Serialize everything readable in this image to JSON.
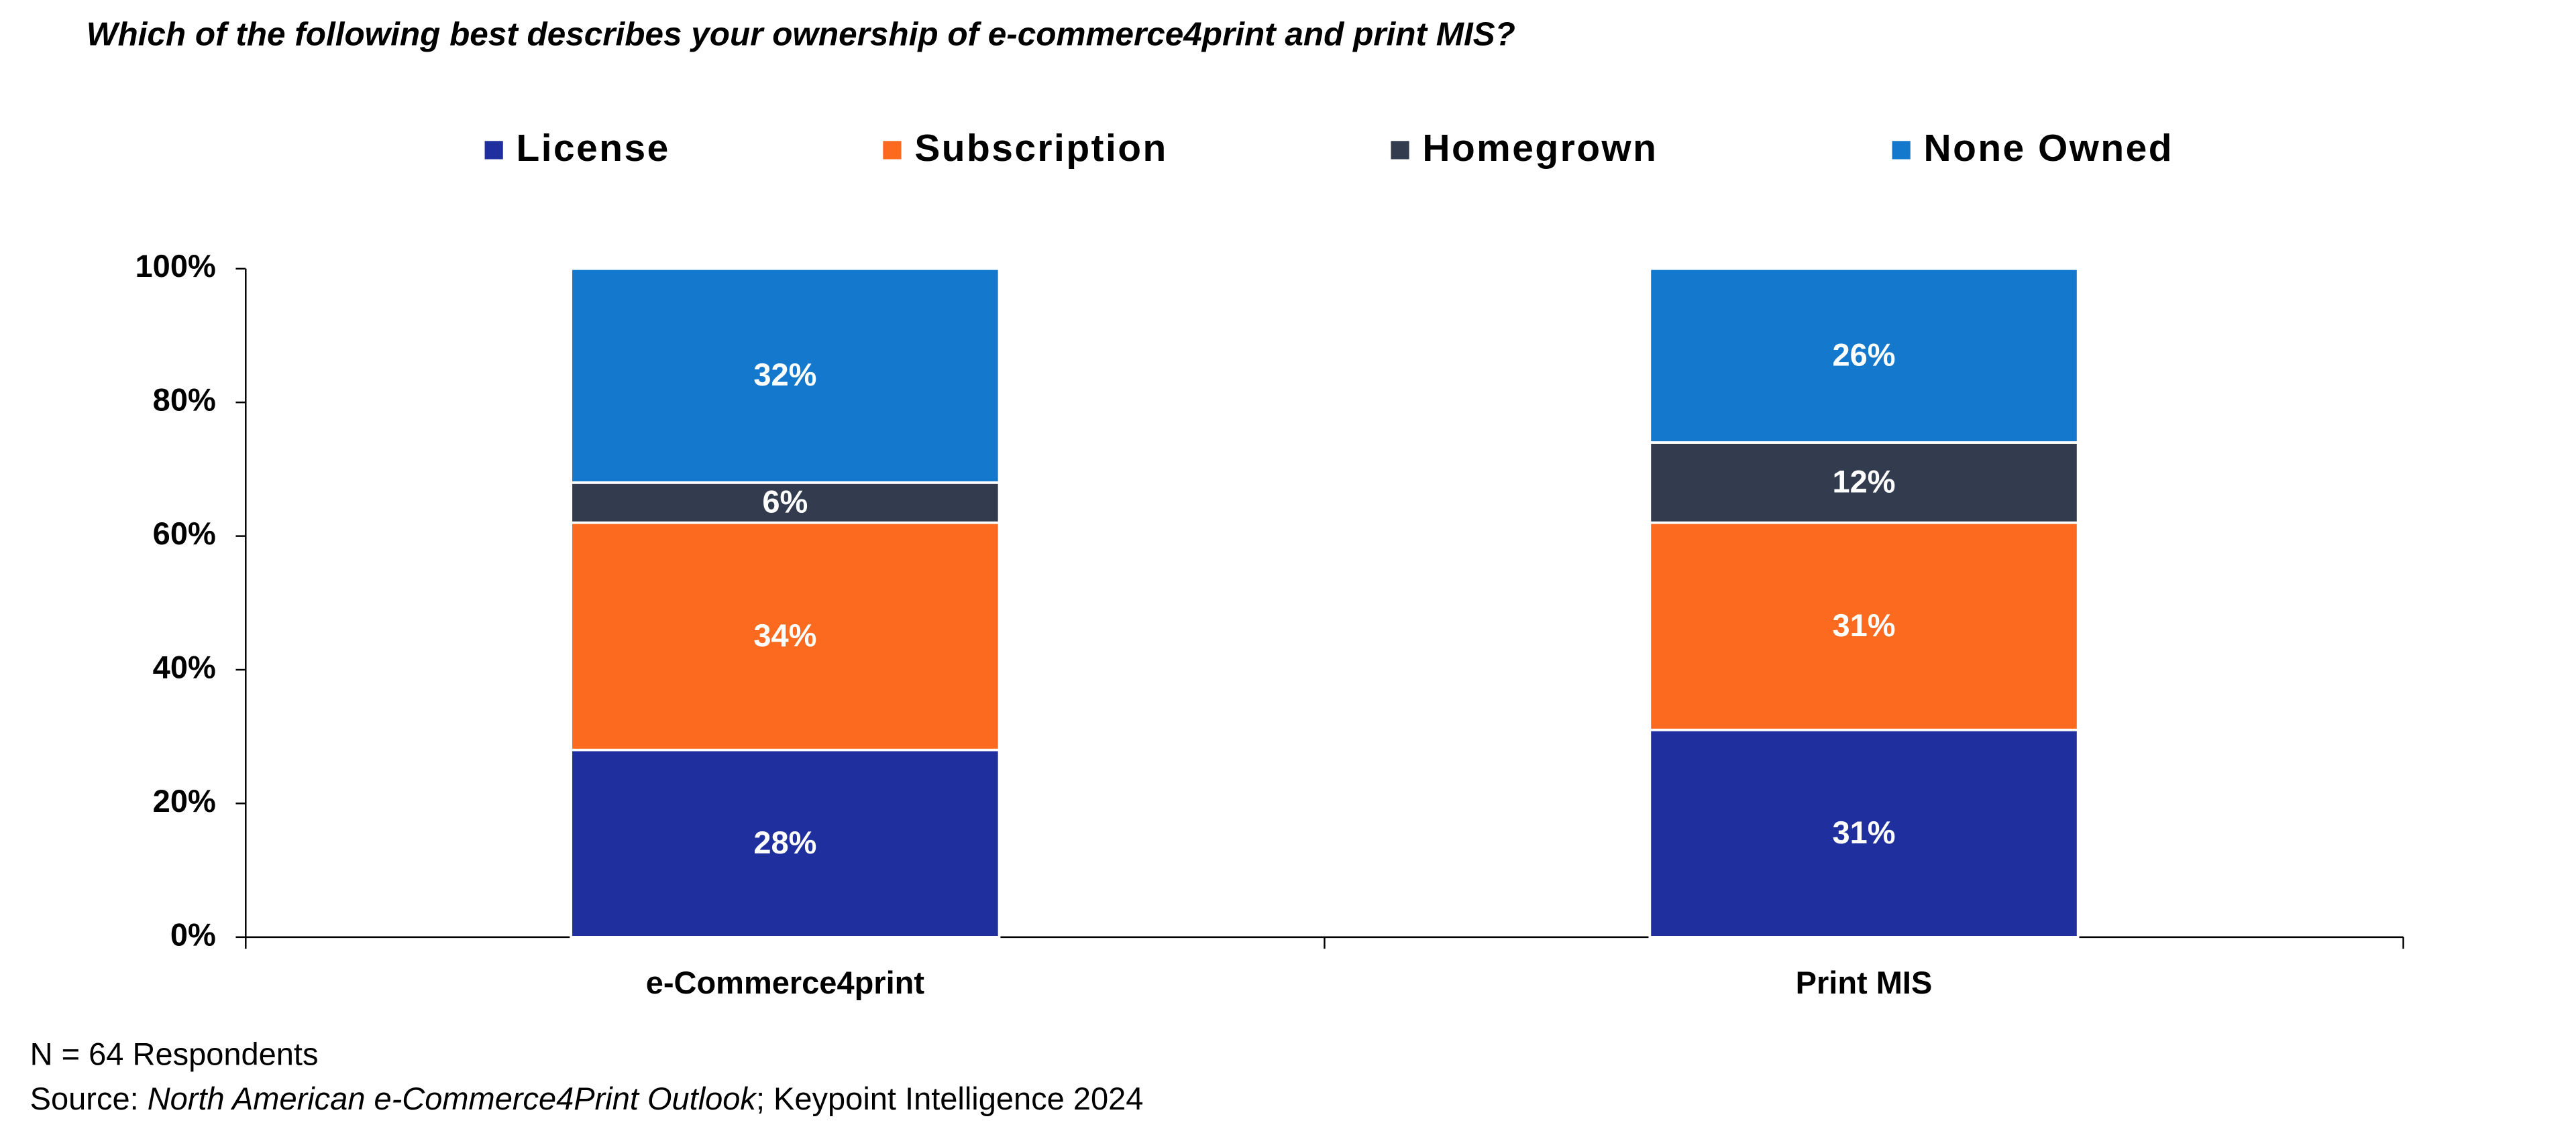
{
  "chart_data": {
    "type": "stacked_bar",
    "title": "Which of the following best describes your ownership of e-commerce4print and print MIS?",
    "categories": [
      "e-Commerce4print",
      "Print MIS"
    ],
    "series": [
      {
        "name": "License",
        "color": "#1f2f9e",
        "values": [
          28,
          31
        ],
        "value_labels": [
          "28%",
          "31%"
        ]
      },
      {
        "name": "Subscription",
        "color": "#fb6a1e",
        "values": [
          34,
          31
        ],
        "value_labels": [
          "34%",
          "31%"
        ]
      },
      {
        "name": "Homegrown",
        "color": "#323c4e",
        "values": [
          6,
          12
        ],
        "value_labels": [
          "6%",
          "12%"
        ]
      },
      {
        "name": "None Owned",
        "color": "#1478cc",
        "values": [
          32,
          26
        ],
        "value_labels": [
          "32%",
          "26%"
        ]
      }
    ],
    "ylim": [
      0,
      100
    ],
    "yticks": [
      {
        "value": 0,
        "label": "0%"
      },
      {
        "value": 20,
        "label": "20%"
      },
      {
        "value": 40,
        "label": "40%"
      },
      {
        "value": 60,
        "label": "60%"
      },
      {
        "value": 80,
        "label": "80%"
      },
      {
        "value": 100,
        "label": "100%"
      }
    ],
    "legend": "top",
    "note": "N = 64 Respondents",
    "source": {
      "prefix": "Source: ",
      "title": "North American e-Commerce4Print Outlook",
      "suffix": "; Keypoint Intelligence 2024"
    }
  }
}
